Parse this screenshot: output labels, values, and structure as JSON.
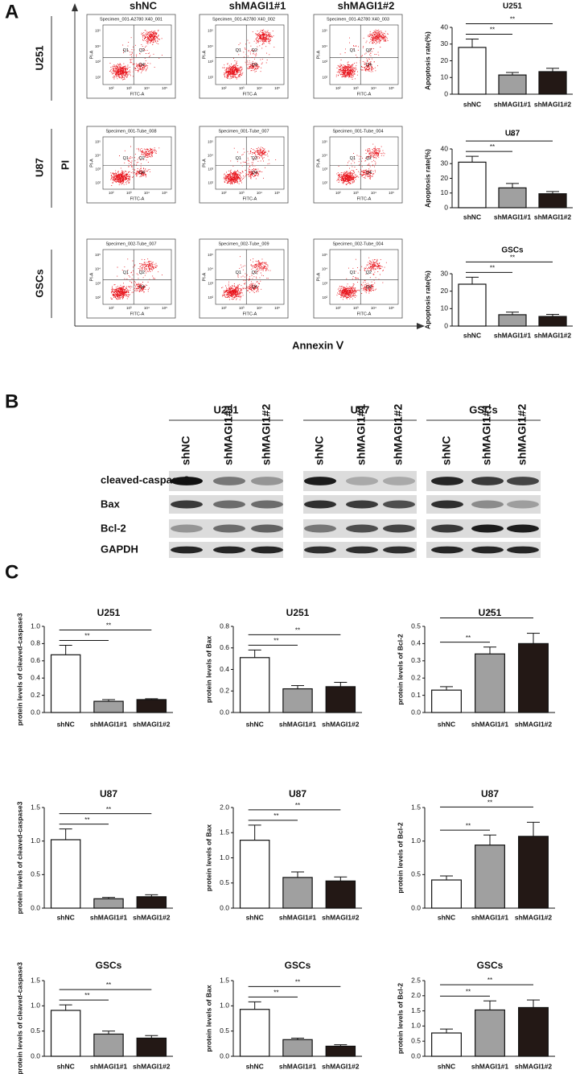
{
  "panel_a": {
    "label": "A",
    "columns": [
      "shNC",
      "shMAGI1#1",
      "shMAGI1#2"
    ],
    "rows": [
      "U251",
      "U87",
      "GSCs"
    ],
    "y_axis": "PI",
    "x_axis": "Annexin Ⅴ",
    "plots": [
      [
        "Specimen_001-A2780 X40_001",
        "Specimen_001-A2780 X40_002",
        "Specimen_001-A2780 X40_003"
      ],
      [
        "Specimen_001-Tube_008",
        "Specimen_001-Tube_007",
        "Specimen_001-Tube_004"
      ],
      [
        "Specimen_002-Tube_007",
        "Specimen_002-Tube_009",
        "Specimen_002-Tube_004"
      ]
    ],
    "quadrants": [
      "Q1",
      "Q2",
      "Q4"
    ],
    "plot_y_label": "PI-A",
    "plot_x_label": "FITC-A",
    "plot_ticks": [
      "10²",
      "10³",
      "10⁴",
      "10⁵"
    ]
  },
  "panel_b": {
    "label": "B",
    "groups": [
      "U251",
      "U87",
      "GSCs"
    ],
    "lanes": [
      "shNC",
      "shMAGI1#1",
      "shMAGI1#2"
    ],
    "proteins": [
      "cleaved-caspase3",
      "Bax",
      "Bcl-2",
      "GAPDH"
    ]
  },
  "panel_c": {
    "label": "C"
  },
  "chart_data": [
    {
      "type": "bar",
      "title": "U251",
      "y_label": "Apoptosis rate(%)",
      "categories": [
        "shNC",
        "shMAGI1#1",
        "shMAGI1#2"
      ],
      "values": [
        28,
        11.5,
        13.5
      ],
      "errors": [
        5,
        1.5,
        2
      ],
      "colors": [
        "#ffffff",
        "#a0a0a0",
        "#231815"
      ],
      "ylim": [
        0,
        40
      ],
      "yticks": [
        0,
        10,
        20,
        30,
        40
      ],
      "annotations": [
        "**",
        "**"
      ]
    },
    {
      "type": "bar",
      "title": "U87",
      "y_label": "Apoptosis rate(%)",
      "categories": [
        "shNC",
        "shMAGI1#1",
        "shMAGI1#2"
      ],
      "values": [
        31,
        13.5,
        9.5
      ],
      "errors": [
        4,
        3,
        1.5
      ],
      "colors": [
        "#ffffff",
        "#a0a0a0",
        "#231815"
      ],
      "ylim": [
        0,
        40
      ],
      "yticks": [
        0,
        10,
        20,
        30,
        40
      ],
      "annotations": [
        "**",
        "**"
      ]
    },
    {
      "type": "bar",
      "title": "GSCs",
      "y_label": "Apoptosis rate(%)",
      "categories": [
        "shNC",
        "shMAGI1#1",
        "shMAGI1#2"
      ],
      "values": [
        24,
        6.5,
        5.5
      ],
      "errors": [
        4,
        1.5,
        1.2
      ],
      "colors": [
        "#ffffff",
        "#a0a0a0",
        "#231815"
      ],
      "ylim": [
        0,
        30
      ],
      "yticks": [
        0,
        10,
        20,
        30
      ],
      "annotations": [
        "**",
        "**"
      ]
    },
    {
      "type": "bar",
      "title": "U251",
      "y_label": "protein levels of cleaved-caspase3",
      "categories": [
        "shNC",
        "shMAGI1#1",
        "shMAGI1#2"
      ],
      "values": [
        0.67,
        0.13,
        0.15
      ],
      "errors": [
        0.11,
        0.02,
        0.01
      ],
      "colors": [
        "#ffffff",
        "#a0a0a0",
        "#231815"
      ],
      "ylim": [
        0,
        1
      ],
      "yticks": [
        {
          "value": 0,
          "label": "0.0"
        },
        0.2,
        0.4,
        0.6,
        0.8,
        {
          "value": 1,
          "label": "1.0"
        }
      ],
      "annotations": [
        "**",
        "**"
      ]
    },
    {
      "type": "bar",
      "title": "U251",
      "y_label": "protein levels of Bax",
      "categories": [
        "shNC",
        "shMAGI1#1",
        "shMAGI1#2"
      ],
      "values": [
        0.51,
        0.22,
        0.24
      ],
      "errors": [
        0.07,
        0.03,
        0.04
      ],
      "colors": [
        "#ffffff",
        "#a0a0a0",
        "#231815"
      ],
      "ylim": [
        0,
        0.8
      ],
      "yticks": [
        {
          "value": 0,
          "label": "0.0"
        },
        0.2,
        0.4,
        0.6,
        0.8
      ],
      "annotations": [
        "**",
        "**"
      ]
    },
    {
      "type": "bar",
      "title": "U251",
      "y_label": "protein levels of Bcl-2",
      "categories": [
        "shNC",
        "shMAGI1#1",
        "shMAGI1#2"
      ],
      "values": [
        0.13,
        0.34,
        0.4
      ],
      "errors": [
        0.02,
        0.04,
        0.06
      ],
      "colors": [
        "#ffffff",
        "#a0a0a0",
        "#231815"
      ],
      "ylim": [
        0,
        0.5
      ],
      "yticks": [
        {
          "value": 0,
          "label": "0.0"
        },
        0.1,
        0.2,
        0.3,
        0.4,
        0.5
      ],
      "annotations": [
        "**",
        "**"
      ]
    },
    {
      "type": "bar",
      "title": "U87",
      "y_label": "protein levels of cleaved-caspase3",
      "categories": [
        "shNC",
        "shMAGI1#1",
        "shMAGI1#2"
      ],
      "values": [
        1.02,
        0.14,
        0.17
      ],
      "errors": [
        0.16,
        0.02,
        0.03
      ],
      "colors": [
        "#ffffff",
        "#a0a0a0",
        "#231815"
      ],
      "ylim": [
        0,
        1.5
      ],
      "yticks": [
        {
          "value": 0,
          "label": "0.0"
        },
        0.5,
        {
          "value": 1,
          "label": "1.0"
        },
        1.5
      ],
      "annotations": [
        "**",
        "**"
      ]
    },
    {
      "type": "bar",
      "title": "U87",
      "y_label": "protein levels of Bax",
      "categories": [
        "shNC",
        "shMAGI1#1",
        "shMAGI1#2"
      ],
      "values": [
        1.35,
        0.61,
        0.54
      ],
      "errors": [
        0.3,
        0.11,
        0.08
      ],
      "colors": [
        "#ffffff",
        "#a0a0a0",
        "#231815"
      ],
      "ylim": [
        0,
        2
      ],
      "yticks": [
        {
          "value": 0,
          "label": "0.0"
        },
        0.5,
        {
          "value": 1,
          "label": "1.0"
        },
        1.5,
        {
          "value": 2,
          "label": "2.0"
        }
      ],
      "annotations": [
        "**",
        "**"
      ]
    },
    {
      "type": "bar",
      "title": "U87",
      "y_label": "protein levels of Bcl-2",
      "categories": [
        "shNC",
        "shMAGI1#1",
        "shMAGI1#2"
      ],
      "values": [
        0.42,
        0.94,
        1.07
      ],
      "errors": [
        0.06,
        0.15,
        0.21
      ],
      "colors": [
        "#ffffff",
        "#a0a0a0",
        "#231815"
      ],
      "ylim": [
        0,
        1.5
      ],
      "yticks": [
        {
          "value": 0,
          "label": "0.0"
        },
        0.5,
        {
          "value": 1,
          "label": "1.0"
        },
        1.5
      ],
      "annotations": [
        "**",
        "**"
      ]
    },
    {
      "type": "bar",
      "title": "GSCs",
      "y_label": "protein levels of cleaved-caspase3",
      "categories": [
        "shNC",
        "shMAGI1#1",
        "shMAGI1#2"
      ],
      "values": [
        0.91,
        0.44,
        0.36
      ],
      "errors": [
        0.11,
        0.06,
        0.05
      ],
      "colors": [
        "#ffffff",
        "#a0a0a0",
        "#231815"
      ],
      "ylim": [
        0,
        1.5
      ],
      "yticks": [
        {
          "value": 0,
          "label": "0.0"
        },
        0.5,
        {
          "value": 1,
          "label": "1.0"
        },
        1.5
      ],
      "annotations": [
        "**",
        "**"
      ]
    },
    {
      "type": "bar",
      "title": "GSCs",
      "y_label": "protein levels of Bax",
      "categories": [
        "shNC",
        "shMAGI1#1",
        "shMAGI1#2"
      ],
      "values": [
        0.93,
        0.33,
        0.2
      ],
      "errors": [
        0.15,
        0.03,
        0.03
      ],
      "colors": [
        "#ffffff",
        "#a0a0a0",
        "#231815"
      ],
      "ylim": [
        0,
        1.5
      ],
      "yticks": [
        {
          "value": 0,
          "label": "0.0"
        },
        0.5,
        {
          "value": 1,
          "label": "1.0"
        },
        1.5
      ],
      "annotations": [
        "**",
        "**"
      ]
    },
    {
      "type": "bar",
      "title": "GSCs",
      "y_label": "protein levels of Bcl-2",
      "categories": [
        "shNC",
        "shMAGI1#1",
        "shMAGI1#2"
      ],
      "values": [
        0.77,
        1.53,
        1.61
      ],
      "errors": [
        0.13,
        0.3,
        0.25
      ],
      "colors": [
        "#ffffff",
        "#a0a0a0",
        "#231815"
      ],
      "ylim": [
        0,
        2.5
      ],
      "yticks": [
        {
          "value": 0,
          "label": "0.0"
        },
        0.5,
        {
          "value": 1,
          "label": "1.0"
        },
        1.5,
        {
          "value": 2,
          "label": "2.0"
        },
        2.5
      ],
      "annotations": [
        "**",
        "**"
      ]
    }
  ]
}
